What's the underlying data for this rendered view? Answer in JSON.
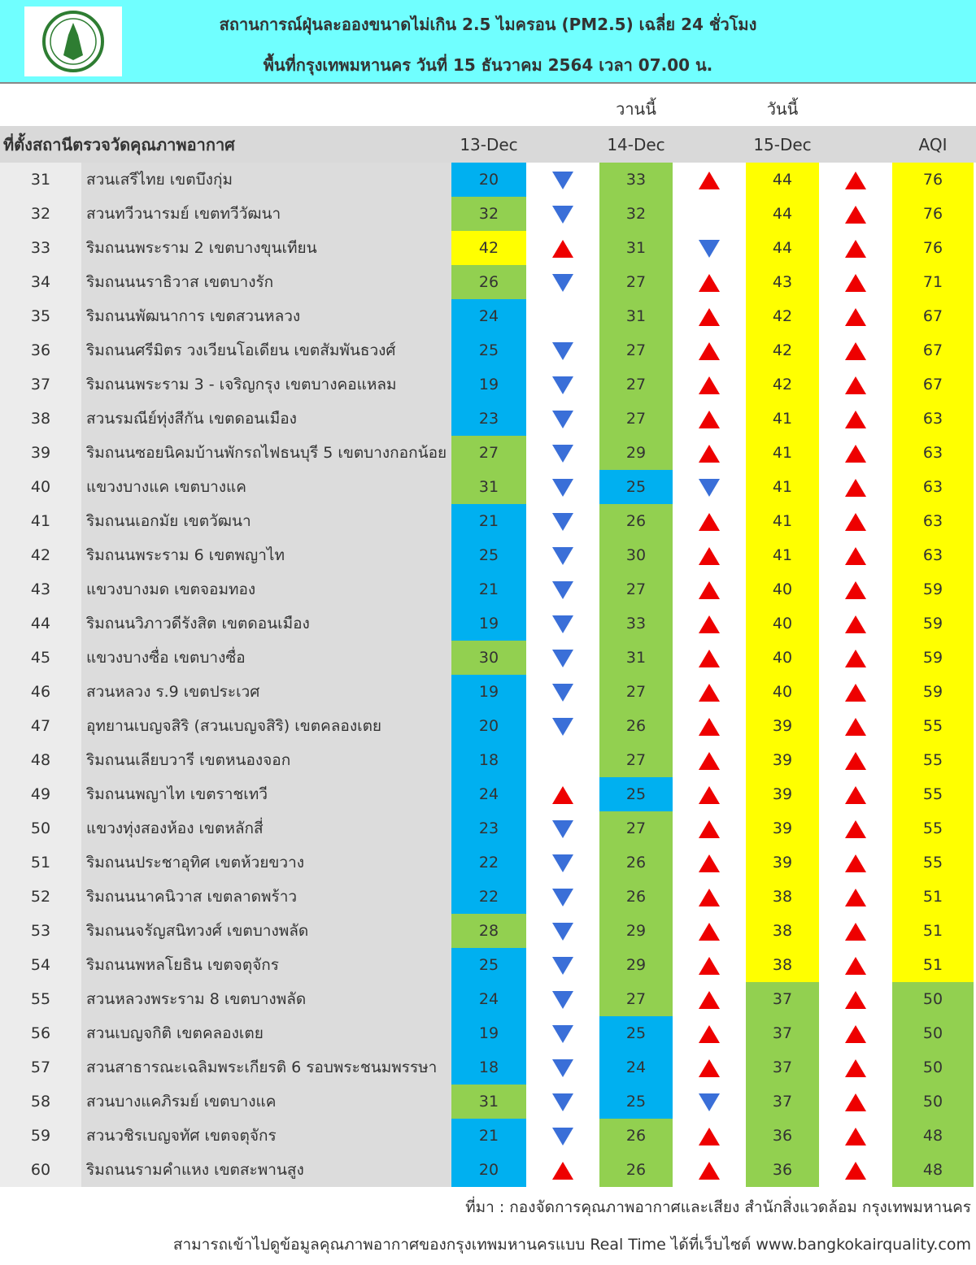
{
  "header": {
    "title": "สถานการณ์ฝุ่นละอองขนาดไม่เกิน 2.5 ไมครอน (PM2.5) เฉลี่ย 24 ชั่วโมง",
    "subtitle": "พื้นที่กรุงเทพมหานคร วันที่ 15 ธันวาคม 2564 เวลา 07.00 น."
  },
  "table": {
    "day_labels": [
      "วานนี้",
      "วันนี้"
    ],
    "columns": [
      "ที่ตั้งสถานีตรวจวัดคุณภาพอากาศ",
      "13-Dec",
      "14-Dec",
      "15-Dec",
      "AQI"
    ],
    "rows": [
      [
        "31",
        "สวนเสรีไทย  เขตบึงกุ่ม",
        "20",
        "down",
        "33",
        "up",
        "44",
        "up",
        "76"
      ],
      [
        "32",
        "สวนทวีวนารมย์ เขตทวีวัฒนา",
        "32",
        "down",
        "32",
        null,
        "44",
        "up",
        "76"
      ],
      [
        "33",
        "ริมถนนพระราม 2 เขตบางขุนเทียน",
        "42",
        "up",
        "31",
        "down",
        "44",
        "up",
        "76"
      ],
      [
        "34",
        "ริมถนนนราธิวาส เขตบางรัก",
        "26",
        "down",
        "27",
        "up",
        "43",
        "up",
        "71"
      ],
      [
        "35",
        "ริมถนนพัฒนาการ เขตสวนหลวง",
        "24",
        null,
        "31",
        "up",
        "42",
        "up",
        "67"
      ],
      [
        "36",
        "ริมถนนศรีมิตร วงเวียนโอเดียน เขตสัมพันธวงศ์",
        "25",
        "down",
        "27",
        "up",
        "42",
        "up",
        "67"
      ],
      [
        "37",
        "ริมถนนพระราม 3 - เจริญกรุง เขตบางคอแหลม",
        "19",
        "down",
        "27",
        "up",
        "42",
        "up",
        "67"
      ],
      [
        "38",
        "สวนรมณีย์ทุ่งสีกัน เขตดอนเมือง",
        "23",
        "down",
        "27",
        "up",
        "41",
        "up",
        "63"
      ],
      [
        "39",
        "ริมถนนซอยนิคมบ้านพักรถไฟธนบุรี 5 เขตบางกอกน้อย",
        "27",
        "down",
        "29",
        "up",
        "41",
        "up",
        "63"
      ],
      [
        "40",
        "แขวงบางแค เขตบางแค",
        "31",
        "down",
        "25",
        "down",
        "41",
        "up",
        "63"
      ],
      [
        "41",
        "ริมถนนเอกมัย เขตวัฒนา",
        "21",
        "down",
        "26",
        "up",
        "41",
        "up",
        "63"
      ],
      [
        "42",
        "ริมถนนพระราม 6 เขตพญาไท",
        "25",
        "down",
        "30",
        "up",
        "41",
        "up",
        "63"
      ],
      [
        "43",
        "แขวงบางมด เขตจอมทอง",
        "21",
        "down",
        "27",
        "up",
        "40",
        "up",
        "59"
      ],
      [
        "44",
        "ริมถนนวิภาวดีรังสิต เขตดอนเมือง",
        "19",
        "down",
        "33",
        "up",
        "40",
        "up",
        "59"
      ],
      [
        "45",
        "แขวงบางซื่อ เขตบางซื่อ",
        "30",
        "down",
        "31",
        "up",
        "40",
        "up",
        "59"
      ],
      [
        "46",
        "สวนหลวง ร.9 เขตประเวศ",
        "19",
        "down",
        "27",
        "up",
        "40",
        "up",
        "59"
      ],
      [
        "47",
        "อุทยานเบญจสิริ (สวนเบญจสิริ) เขตคลองเตย",
        "20",
        "down",
        "26",
        "up",
        "39",
        "up",
        "55"
      ],
      [
        "48",
        "ริมถนนเลียบวารี เขตหนองจอก",
        "18",
        null,
        "27",
        "up",
        "39",
        "up",
        "55"
      ],
      [
        "49",
        "ริมถนนพญาไท เขตราชเทวี",
        "24",
        "up",
        "25",
        "up",
        "39",
        "up",
        "55"
      ],
      [
        "50",
        "แขวงทุ่งสองห้อง เขตหลักสี่",
        "23",
        "down",
        "27",
        "up",
        "39",
        "up",
        "55"
      ],
      [
        "51",
        "ริมถนนประชาอุทิศ เขตห้วยขวาง",
        "22",
        "down",
        "26",
        "up",
        "39",
        "up",
        "55"
      ],
      [
        "52",
        "ริมถนนนาคนิวาส เขตลาดพร้าว",
        "22",
        "down",
        "26",
        "up",
        "38",
        "up",
        "51"
      ],
      [
        "53",
        "ริมถนนจรัญสนิทวงศ์ เขตบางพลัด",
        "28",
        "down",
        "29",
        "up",
        "38",
        "up",
        "51"
      ],
      [
        "54",
        "ริมถนนพหลโยธิน เขตจตุจักร",
        "25",
        "down",
        "29",
        "up",
        "38",
        "up",
        "51"
      ],
      [
        "55",
        "สวนหลวงพระราม 8 เขตบางพลัด",
        "24",
        "down",
        "27",
        "up",
        "37",
        "up",
        "50"
      ],
      [
        "56",
        "สวนเบญจกิติ เขตคลองเตย",
        "19",
        "down",
        "25",
        "up",
        "37",
        "up",
        "50"
      ],
      [
        "57",
        "สวนสาธารณะเฉลิมพระเกียรติ 6 รอบพระชนมพรรษา",
        "18",
        "down",
        "24",
        "up",
        "37",
        "up",
        "50"
      ],
      [
        "58",
        "สวนบางแคภิรมย์ เขตบางแค",
        "31",
        "down",
        "25",
        "down",
        "37",
        "up",
        "50"
      ],
      [
        "59",
        "สวนวชิรเบญจทัศ เขตจตุจักร",
        "21",
        "down",
        "26",
        "up",
        "36",
        "up",
        "48"
      ],
      [
        "60",
        "ริมถนนรามคำแหง เขตสะพานสูง",
        "20",
        "up",
        "26",
        "up",
        "36",
        "up",
        "48"
      ]
    ],
    "cell_colors": [
      [
        "blue",
        "green",
        "yellow",
        "yellow"
      ],
      [
        "green",
        "green",
        "yellow",
        "yellow"
      ],
      [
        "yellow",
        "green",
        "yellow",
        "yellow"
      ],
      [
        "green",
        "green",
        "yellow",
        "yellow"
      ],
      [
        "blue",
        "green",
        "yellow",
        "yellow"
      ],
      [
        "blue",
        "green",
        "yellow",
        "yellow"
      ],
      [
        "blue",
        "green",
        "yellow",
        "yellow"
      ],
      [
        "blue",
        "green",
        "yellow",
        "yellow"
      ],
      [
        "green",
        "green",
        "yellow",
        "yellow"
      ],
      [
        "green",
        "blue",
        "yellow",
        "yellow"
      ],
      [
        "blue",
        "green",
        "yellow",
        "yellow"
      ],
      [
        "blue",
        "green",
        "yellow",
        "yellow"
      ],
      [
        "blue",
        "green",
        "yellow",
        "yellow"
      ],
      [
        "blue",
        "green",
        "yellow",
        "yellow"
      ],
      [
        "green",
        "green",
        "yellow",
        "yellow"
      ],
      [
        "blue",
        "green",
        "yellow",
        "yellow"
      ],
      [
        "blue",
        "green",
        "yellow",
        "yellow"
      ],
      [
        "blue",
        "green",
        "yellow",
        "yellow"
      ],
      [
        "blue",
        "blue",
        "yellow",
        "yellow"
      ],
      [
        "blue",
        "green",
        "yellow",
        "yellow"
      ],
      [
        "blue",
        "green",
        "yellow",
        "yellow"
      ],
      [
        "blue",
        "green",
        "yellow",
        "yellow"
      ],
      [
        "green",
        "green",
        "yellow",
        "yellow"
      ],
      [
        "blue",
        "green",
        "yellow",
        "yellow"
      ],
      [
        "blue",
        "green",
        "green",
        "green"
      ],
      [
        "blue",
        "blue",
        "green",
        "green"
      ],
      [
        "blue",
        "blue",
        "green",
        "green"
      ],
      [
        "green",
        "blue",
        "green",
        "green"
      ],
      [
        "blue",
        "green",
        "green",
        "green"
      ],
      [
        "blue",
        "green",
        "green",
        "green"
      ]
    ]
  },
  "footer": {
    "source": "ที่มา : กองจัดการคุณภาพอากาศและเสียง สำนักสิ่งแวดล้อม กรุงเทพมหานคร",
    "note": "สามารถเข้าไปดูข้อมูลคุณภาพอากาศของกรุงเทพมหานครแบบ Real Time ได้ที่เว็บไซต์ www.bangkokairquality.com"
  }
}
